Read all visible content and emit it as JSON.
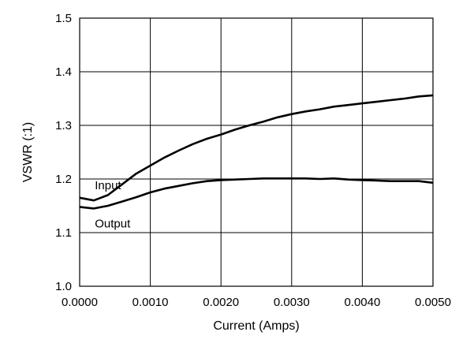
{
  "chart_data": {
    "type": "line",
    "title": "",
    "xlabel": "Current (Amps)",
    "ylabel": "VSWR (:1)",
    "xlim": [
      0.0,
      0.005
    ],
    "ylim": [
      1.0,
      1.5
    ],
    "x_ticks": [
      "0.0000",
      "0.0010",
      "0.0020",
      "0.0030",
      "0.0040",
      "0.0050"
    ],
    "y_ticks": [
      "1.0",
      "1.1",
      "1.2",
      "1.3",
      "1.4",
      "1.5"
    ],
    "grid": true,
    "series": [
      {
        "name": "Input",
        "x": [
          0.0,
          0.0002,
          0.0004,
          0.0006,
          0.0008,
          0.001,
          0.0012,
          0.0014,
          0.0016,
          0.0018,
          0.002,
          0.0022,
          0.0024,
          0.0026,
          0.0028,
          0.003,
          0.0032,
          0.0034,
          0.0036,
          0.0038,
          0.004,
          0.0042,
          0.0044,
          0.0046,
          0.0048,
          0.005
        ],
        "y": [
          1.165,
          1.16,
          1.17,
          1.19,
          1.21,
          1.225,
          1.24,
          1.253,
          1.265,
          1.275,
          1.283,
          1.292,
          1.3,
          1.307,
          1.315,
          1.321,
          1.326,
          1.33,
          1.335,
          1.338,
          1.341,
          1.344,
          1.347,
          1.35,
          1.354,
          1.356
        ],
        "color": "#000000"
      },
      {
        "name": "Output",
        "x": [
          0.0,
          0.0002,
          0.0004,
          0.0006,
          0.0008,
          0.001,
          0.0012,
          0.0014,
          0.0016,
          0.0018,
          0.002,
          0.0022,
          0.0024,
          0.0026,
          0.0028,
          0.003,
          0.0032,
          0.0034,
          0.0036,
          0.0038,
          0.004,
          0.0042,
          0.0044,
          0.0046,
          0.0048,
          0.005
        ],
        "y": [
          1.148,
          1.145,
          1.15,
          1.158,
          1.166,
          1.175,
          1.182,
          1.187,
          1.192,
          1.196,
          1.198,
          1.199,
          1.2,
          1.201,
          1.201,
          1.201,
          1.201,
          1.2,
          1.201,
          1.199,
          1.198,
          1.197,
          1.196,
          1.196,
          1.196,
          1.193
        ],
        "color": "#000000"
      }
    ]
  }
}
